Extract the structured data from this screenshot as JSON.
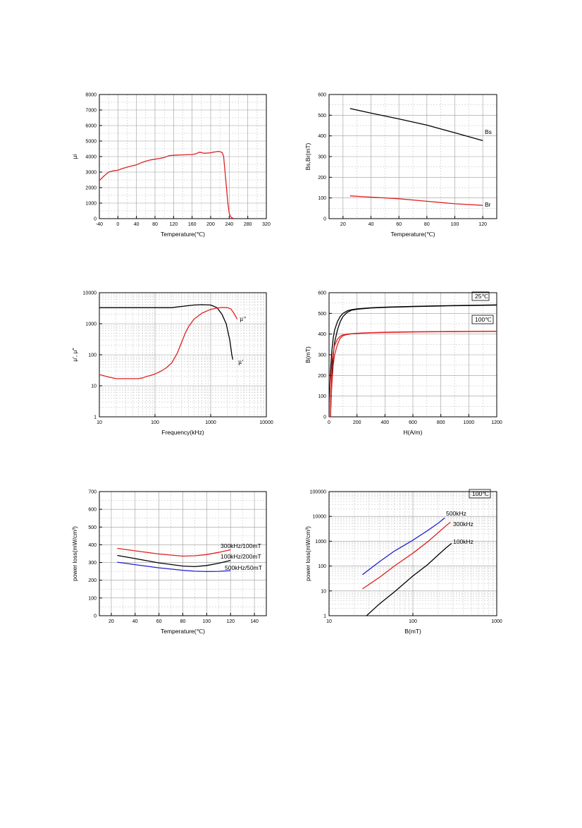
{
  "chart_data": [
    {
      "type": "line",
      "xlabel": "Temperature(℃)",
      "ylabel": "μi",
      "xlim": [
        -40,
        320
      ],
      "ylim": [
        0,
        8000
      ],
      "xticks": [
        "-40",
        "0",
        "40",
        "80",
        "120",
        "160",
        "200",
        "240",
        "280",
        "320"
      ],
      "yticks": [
        "0",
        "1000",
        "2000",
        "3000",
        "4000",
        "5000",
        "6000",
        "7000",
        "8000"
      ],
      "grid": true,
      "series": [
        {
          "color": "#e02020",
          "x": [
            -40,
            -30,
            -20,
            -10,
            0,
            10,
            20,
            30,
            40,
            50,
            60,
            70,
            80,
            90,
            100,
            110,
            120,
            130,
            140,
            150,
            160,
            165,
            170,
            175,
            180,
            185,
            190,
            195,
            200,
            205,
            210,
            215,
            220,
            225,
            228,
            231,
            234,
            237,
            240,
            243,
            246,
            250
          ],
          "y": [
            2450,
            2750,
            3000,
            3080,
            3120,
            3230,
            3320,
            3400,
            3470,
            3600,
            3700,
            3780,
            3830,
            3880,
            3940,
            4060,
            4080,
            4100,
            4110,
            4120,
            4130,
            4160,
            4200,
            4280,
            4260,
            4220,
            4220,
            4230,
            4240,
            4280,
            4300,
            4330,
            4320,
            4250,
            4000,
            3000,
            2000,
            1000,
            350,
            120,
            50,
            0
          ]
        }
      ]
    },
    {
      "type": "line",
      "xlabel": "Temperature(℃)",
      "ylabel": "Bs,Br(mT)",
      "xlim": [
        10,
        130
      ],
      "ylim": [
        0,
        600
      ],
      "xticks": [
        "20",
        "40",
        "60",
        "80",
        "100",
        "120"
      ],
      "yticks": [
        "0",
        "100",
        "200",
        "300",
        "400",
        "500",
        "600"
      ],
      "grid": true,
      "annotations": [
        "Bs",
        "Br"
      ],
      "series": [
        {
          "color": "#000000",
          "x": [
            25,
            40,
            60,
            80,
            100,
            120
          ],
          "y": [
            532,
            510,
            482,
            452,
            415,
            377
          ]
        },
        {
          "color": "#e02020",
          "x": [
            25,
            40,
            60,
            80,
            100,
            120
          ],
          "y": [
            110,
            104,
            96,
            84,
            72,
            64
          ]
        }
      ]
    },
    {
      "type": "line",
      "xlabel": "Frequency(kHz)",
      "ylabel": "μ', μ''",
      "xscale": "log",
      "yscale": "log",
      "xlim": [
        10,
        10000
      ],
      "ylim": [
        1,
        10000
      ],
      "xticks": [
        "10",
        "100",
        "1000",
        "10000"
      ],
      "yticks": [
        "1",
        "10",
        "100",
        "1000",
        "10000"
      ],
      "grid": true,
      "annotations": [
        "μ''",
        "μ'"
      ],
      "series": [
        {
          "color": "#000000",
          "x": [
            10,
            50,
            100,
            200,
            300,
            500,
            700,
            1000,
            1300,
            1600,
            1900,
            2200,
            2400,
            2500
          ],
          "y": [
            3300,
            3300,
            3300,
            3300,
            3600,
            4000,
            4100,
            4000,
            3300,
            2000,
            1000,
            300,
            100,
            70
          ]
        },
        {
          "color": "#e02020",
          "x": [
            10,
            15,
            20,
            30,
            50,
            60,
            70,
            80,
            100,
            130,
            160,
            200,
            250,
            300,
            350,
            400,
            500,
            700,
            1000,
            1300,
            1600,
            2000,
            2300,
            2600,
            3000
          ],
          "y": [
            23,
            19,
            17,
            17,
            17,
            18,
            20,
            21,
            24,
            30,
            38,
            55,
            110,
            250,
            500,
            800,
            1400,
            2200,
            2900,
            3200,
            3350,
            3300,
            3000,
            2200,
            1400
          ]
        }
      ]
    },
    {
      "type": "line",
      "xlabel": "H(A/m)",
      "ylabel": "B(mT)",
      "xlim": [
        0,
        1200
      ],
      "ylim": [
        0,
        600
      ],
      "xticks": [
        "0",
        "200",
        "400",
        "600",
        "800",
        "1000",
        "1200"
      ],
      "yticks": [
        "0",
        "100",
        "200",
        "300",
        "400",
        "500",
        "600"
      ],
      "grid": true,
      "annotations": [
        "25℃",
        "100℃"
      ],
      "series": [
        {
          "color": "#000000",
          "x": [
            0,
            5,
            10,
            20,
            30,
            40,
            60,
            80,
            100,
            130,
            160,
            200,
            300,
            400,
            600,
            800,
            1000,
            1200
          ],
          "y": [
            0,
            120,
            220,
            320,
            380,
            420,
            460,
            485,
            500,
            512,
            518,
            522,
            527,
            530,
            534,
            537,
            539,
            541
          ]
        },
        {
          "color": "#000000",
          "x": [
            10,
            15,
            20,
            30,
            40,
            60,
            80,
            100,
            130,
            160,
            200,
            300,
            400,
            600,
            800,
            1000,
            1200
          ],
          "y": [
            0,
            100,
            190,
            300,
            360,
            420,
            460,
            485,
            505,
            515,
            520,
            526,
            529,
            533,
            536,
            538,
            540
          ]
        },
        {
          "color": "#e02020",
          "x": [
            0,
            5,
            10,
            20,
            30,
            40,
            60,
            80,
            100,
            130,
            160,
            200,
            300,
            400,
            600,
            800,
            1000,
            1200
          ],
          "y": [
            0,
            100,
            180,
            260,
            310,
            345,
            375,
            390,
            396,
            400,
            402,
            404,
            407,
            409,
            411,
            412,
            413,
            414
          ]
        },
        {
          "color": "#e02020",
          "x": [
            10,
            15,
            20,
            30,
            40,
            60,
            80,
            100,
            130,
            160,
            200,
            300,
            400,
            600,
            800,
            1000,
            1200
          ],
          "y": [
            0,
            90,
            160,
            250,
            300,
            350,
            380,
            392,
            398,
            401,
            403,
            406,
            408,
            410,
            411,
            412,
            413
          ]
        }
      ]
    },
    {
      "type": "line",
      "xlabel": "Temperature(℃)",
      "ylabel": "power loss(mW/cm³)",
      "xlim": [
        10,
        150
      ],
      "ylim": [
        0,
        700
      ],
      "xticks": [
        "20",
        "40",
        "60",
        "80",
        "100",
        "120",
        "140"
      ],
      "yticks": [
        "0",
        "100",
        "200",
        "300",
        "400",
        "500",
        "600",
        "700"
      ],
      "grid": true,
      "annotations": [
        "300kHz/100mT",
        "100kHz/200mT",
        "500kHz/50mT"
      ],
      "series": [
        {
          "color": "#e02020",
          "x": [
            25,
            40,
            60,
            80,
            90,
            100,
            110,
            120
          ],
          "y": [
            380,
            366,
            348,
            336,
            338,
            345,
            357,
            372
          ]
        },
        {
          "color": "#000000",
          "x": [
            25,
            40,
            60,
            80,
            90,
            100,
            110,
            120
          ],
          "y": [
            340,
            322,
            298,
            280,
            277,
            283,
            296,
            312
          ]
        },
        {
          "color": "#2020d0",
          "x": [
            25,
            40,
            60,
            80,
            90,
            100,
            110,
            120
          ],
          "y": [
            302,
            288,
            270,
            256,
            251,
            249,
            250,
            254
          ]
        }
      ]
    },
    {
      "type": "line",
      "xlabel": "B(mT)",
      "ylabel": "power loss(mW/cm³)",
      "xscale": "log",
      "yscale": "log",
      "xlim": [
        10,
        1000
      ],
      "ylim": [
        1,
        100000
      ],
      "xticks": [
        "10",
        "100",
        "1000"
      ],
      "yticks": [
        "1",
        "10",
        "100",
        "1000",
        "10000",
        "100000"
      ],
      "grid": true,
      "annotations": [
        "100℃",
        "500kHz",
        "300kHz",
        "100kHz"
      ],
      "series": [
        {
          "color": "#2020d0",
          "x": [
            25,
            40,
            60,
            100,
            150,
            200,
            240
          ],
          "y": [
            45,
            150,
            400,
            1100,
            2700,
            5300,
            8800
          ]
        },
        {
          "color": "#e02020",
          "x": [
            25,
            40,
            60,
            100,
            150,
            200,
            250,
            280
          ],
          "y": [
            12,
            35,
            100,
            330,
            950,
            2200,
            4300,
            5800
          ]
        },
        {
          "color": "#000000",
          "x": [
            28,
            40,
            60,
            100,
            150,
            200,
            250,
            290
          ],
          "y": [
            1,
            3,
            9,
            40,
            115,
            280,
            550,
            820
          ]
        }
      ]
    }
  ]
}
